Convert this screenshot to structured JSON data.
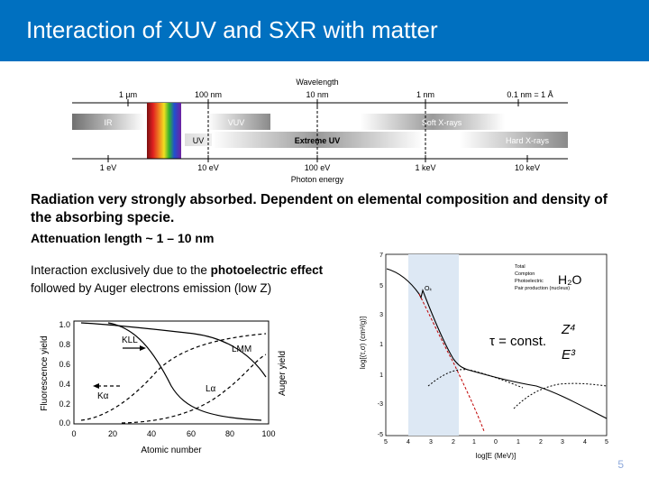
{
  "slide": {
    "title": "Interaction of XUV and SXR with matter",
    "para1": "Radiation very strongly absorbed. Dependent on elemental composition and density of the absorbing specie.",
    "para2": "Attenuation length ~ 1 – 10 nm",
    "para3_prefix": "Interaction exclusively due to the ",
    "para3_bold": "photoelectric effect",
    "para3_suffix": " followed by Auger electrons emission (low Z)",
    "page_number": "5"
  },
  "spectrum": {
    "top_label": "Wavelength",
    "bottom_label": "Photon energy",
    "wavelength_ticks": [
      "1 µm",
      "100 nm",
      "10 nm",
      "1 nm",
      "0.1 nm = 1 Å"
    ],
    "energy_ticks": [
      "1 eV",
      "10 eV",
      "100 eV",
      "1 keV",
      "10 keV"
    ],
    "bands": [
      "IR",
      "VUV",
      "UV",
      "Extreme UV",
      "Soft X-rays",
      "Hard X-rays"
    ]
  },
  "yield_plot": {
    "x_label": "Atomic number",
    "y_left_label": "Fluorescence yield",
    "y_right_label": "Auger yield",
    "x_ticks": [
      "0",
      "20",
      "40",
      "60",
      "80",
      "100"
    ],
    "y_ticks": [
      "1.0",
      "0.8",
      "0.6",
      "0.4",
      "0.2",
      "0.0"
    ],
    "curve_labels": [
      "KLL",
      "LMM",
      "Kα",
      "Lα"
    ]
  },
  "cross_section_plot": {
    "x_label": "log[E (MeV)]",
    "y_label": "log[(τ,σ) (cm²/g)]",
    "x_ticks": [
      "5",
      "4",
      "3",
      "2",
      "1",
      "0",
      "1",
      "2",
      "3",
      "4",
      "5"
    ],
    "y_ticks": [
      "7",
      "5",
      "3",
      "1",
      "1",
      "-3",
      "-5"
    ],
    "edge_label": "Oₖ",
    "legend": [
      "Total",
      "Compton",
      "Photoelectric",
      "Pair production (nucleus)"
    ],
    "molecule": "H₂O",
    "formula_left": "τ = const.",
    "formula_num": "Z⁴",
    "formula_den": "E³"
  }
}
